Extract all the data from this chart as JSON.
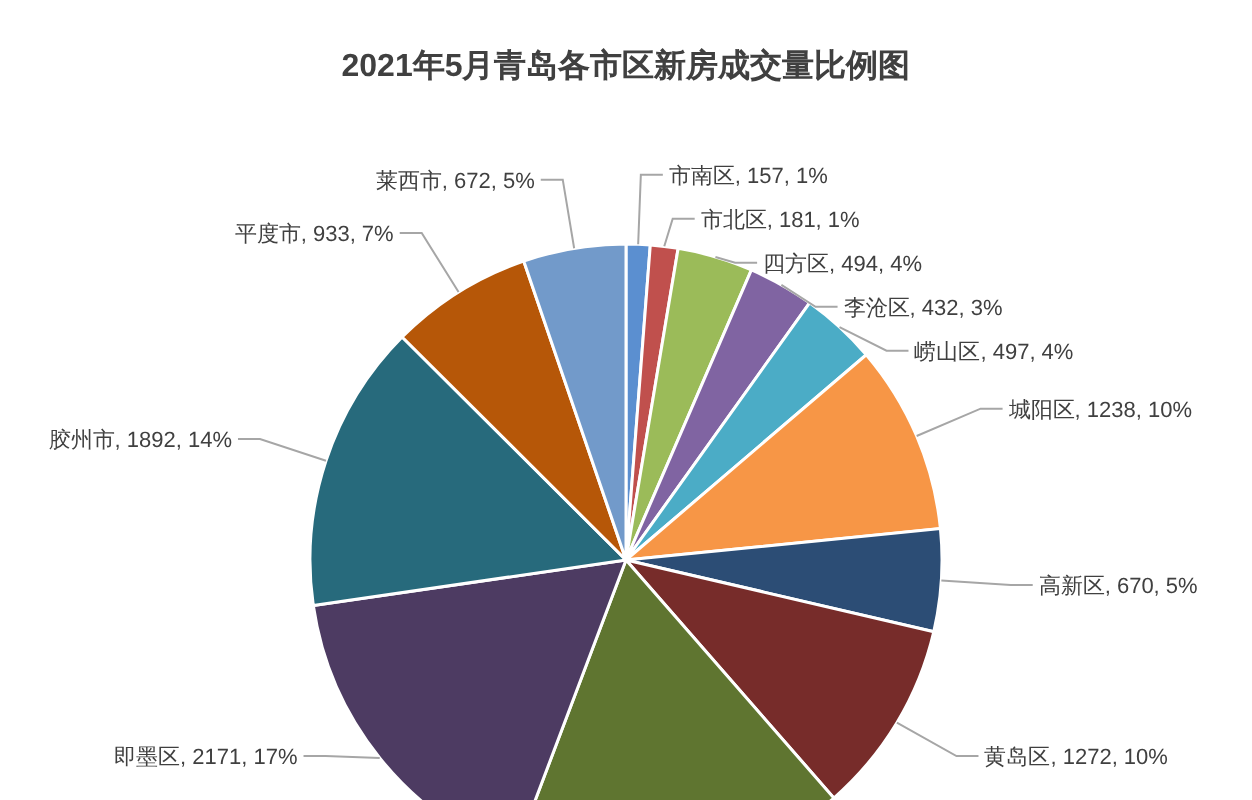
{
  "chart_data": {
    "type": "pie",
    "title": "2021年5月青岛各市区新房成交量比例图",
    "categories": [
      "市南区",
      "市北区",
      "四方区",
      "李沧区",
      "崂山区",
      "城阳区",
      "高新区",
      "黄岛区",
      null,
      "即墨区",
      "胶州市",
      "平度市",
      "莱西市"
    ],
    "values": [
      157,
      181,
      494,
      432,
      497,
      1238,
      670,
      1272,
      2200,
      2171,
      1892,
      933,
      672
    ],
    "value_labels": [
      "157, 1%",
      "181, 1%",
      "494, 4%",
      "432, 3%",
      "497, 4%",
      "1238, 10%",
      "670, 5%",
      "1272, 10%",
      null,
      "2171, 17%",
      "1892, 14%",
      "933, 7%",
      "672, 5%"
    ],
    "colors": [
      "#5b8fd0",
      "#c0504d",
      "#9bbb59",
      "#8064a2",
      "#4bacc6",
      "#f79646",
      "#2c4d75",
      "#772c2a",
      "#5f7530",
      "#4d3b62",
      "#276a7c",
      "#b65708",
      "#729aca"
    ]
  }
}
